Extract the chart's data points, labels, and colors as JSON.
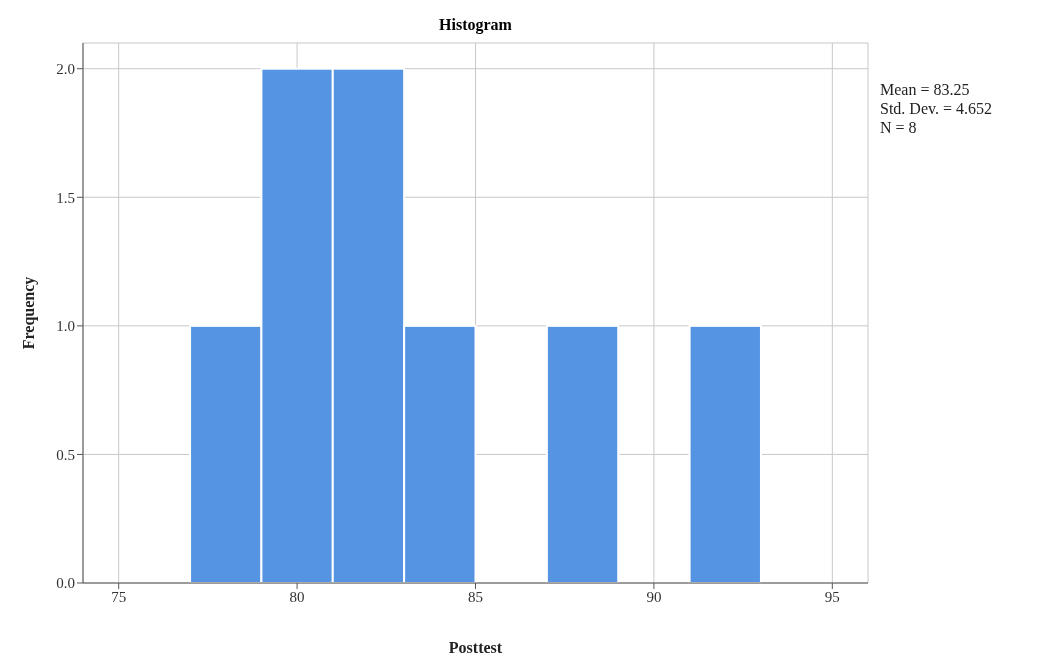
{
  "chart_data": {
    "type": "histogram",
    "title": "Histogram",
    "xlabel": "Posttest",
    "ylabel": "Frequency",
    "bins": [
      77,
      79,
      81,
      83,
      85,
      87,
      89,
      91,
      93
    ],
    "values": [
      1,
      2,
      2,
      1,
      0,
      1,
      0,
      1
    ],
    "color": "#5594e2",
    "xlim": [
      74,
      96
    ],
    "xticks": [
      75,
      80,
      85,
      90,
      95
    ],
    "ylim": [
      0,
      2.1
    ],
    "yticks": [
      {
        "value": 0,
        "label": "0.0"
      },
      {
        "value": 0.5,
        "label": "0.5"
      },
      {
        "value": 1,
        "label": "1.0"
      },
      {
        "value": 1.5,
        "label": "1.5"
      },
      {
        "value": 2,
        "label": "2.0"
      }
    ],
    "grid": true,
    "annotations": [
      "Mean = 83.25",
      "Std. Dev. = 4.652",
      "N = 8"
    ]
  }
}
